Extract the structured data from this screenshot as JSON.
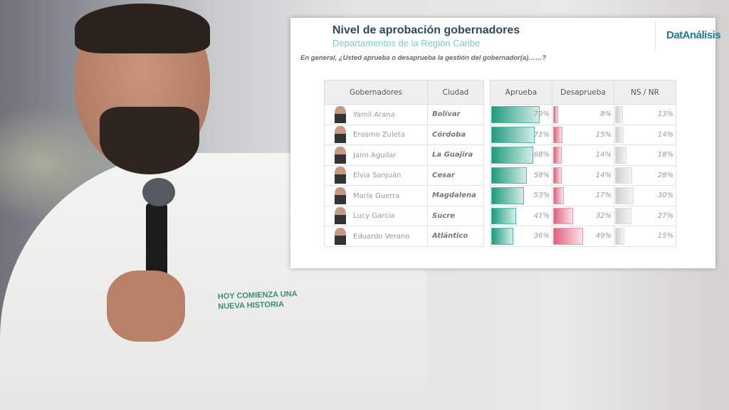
{
  "photo": {
    "shirt_text_1": "HOY COMIENZA UNA",
    "shirt_text_2": "NUEVA HISTORIA"
  },
  "card": {
    "title": "Nivel de aprobación gobernadores",
    "subtitle": "Departamentos de la Región Caribe",
    "logo": "DatAnálisis",
    "question": "En general, ¿Usted aprueba o desaprueba la gestión del gobernador(a)……?"
  },
  "chart_data": {
    "type": "table",
    "title": "Nivel de aprobación gobernadores",
    "subtitle": "Departamentos de la Región Caribe",
    "columns": [
      "Gobernadores",
      "Ciudad",
      "Aprueba",
      "Desaprueba",
      "NS / NR"
    ],
    "colors": {
      "Aprueba": "#1f9a80",
      "Desaprueba": "#e0607e",
      "NS / NR": "#cfcfcf"
    },
    "rows": [
      {
        "name": "Yamil Arana",
        "city": "Bolívar",
        "aprueba": 79,
        "desaprueba": 8,
        "nsnr": 13
      },
      {
        "name": "Erasmo Zuleta",
        "city": "Córdoba",
        "aprueba": 71,
        "desaprueba": 15,
        "nsnr": 14
      },
      {
        "name": "Jairo Aguilar",
        "city": "La Guajira",
        "aprueba": 68,
        "desaprueba": 14,
        "nsnr": 18
      },
      {
        "name": "Elvia Sanjuán",
        "city": "Cesar",
        "aprueba": 58,
        "desaprueba": 14,
        "nsnr": 28
      },
      {
        "name": "María Guerra",
        "city": "Magdalena",
        "aprueba": 53,
        "desaprueba": 17,
        "nsnr": 30
      },
      {
        "name": "Lucy García",
        "city": "Sucre",
        "aprueba": 41,
        "desaprueba": 32,
        "nsnr": 27
      },
      {
        "name": "Eduardo Verano",
        "city": "Atlántico",
        "aprueba": 36,
        "desaprueba": 49,
        "nsnr": 15
      }
    ]
  }
}
